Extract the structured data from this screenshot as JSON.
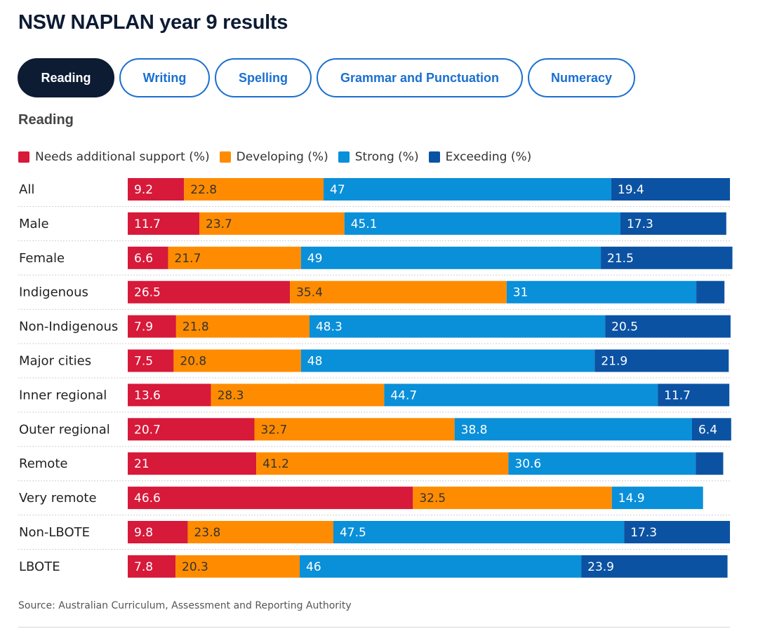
{
  "title": "NSW NAPLAN year 9 results",
  "tabs": [
    {
      "label": "Reading",
      "active": true
    },
    {
      "label": "Writing",
      "active": false
    },
    {
      "label": "Spelling",
      "active": false
    },
    {
      "label": "Grammar and Punctuation",
      "active": false
    },
    {
      "label": "Numeracy",
      "active": false
    }
  ],
  "subtitle": "Reading",
  "source": "Source: Australian Curriculum, Assessment and Reporting Authority",
  "chart_data": {
    "type": "bar",
    "orientation": "horizontal",
    "stacked": true,
    "categories": [
      "All",
      "Male",
      "Female",
      "Indigenous",
      "Non-Indigenous",
      "Major cities",
      "Inner regional",
      "Outer regional",
      "Remote",
      "Very remote",
      "Non-LBOTE",
      "LBOTE"
    ],
    "series": [
      {
        "name": "Needs additional support (%)",
        "color": "#d7193a",
        "values": [
          9.2,
          11.7,
          6.6,
          26.5,
          7.9,
          7.5,
          13.6,
          20.7,
          21,
          46.6,
          9.8,
          7.8
        ]
      },
      {
        "name": "Developing (%)",
        "color": "#ff8c00",
        "values": [
          22.8,
          23.7,
          21.7,
          35.4,
          21.8,
          20.8,
          28.3,
          32.7,
          41.2,
          32.5,
          23.8,
          20.3
        ]
      },
      {
        "name": "Strong (%)",
        "color": "#0a8fd9",
        "values": [
          47,
          45.1,
          49,
          31,
          48.3,
          48,
          44.7,
          38.8,
          30.6,
          14.9,
          47.5,
          46
        ]
      },
      {
        "name": "Exceeding (%)",
        "color": "#0b52a3",
        "values": [
          19.4,
          17.3,
          21.5,
          4.6,
          20.5,
          21.9,
          11.7,
          6.4,
          4.5,
          null,
          17.3,
          23.9
        ]
      }
    ],
    "hidden_labels": [
      [
        3,
        3
      ],
      [
        8,
        3
      ]
    ],
    "legend_position": "top-left",
    "grid": false
  }
}
